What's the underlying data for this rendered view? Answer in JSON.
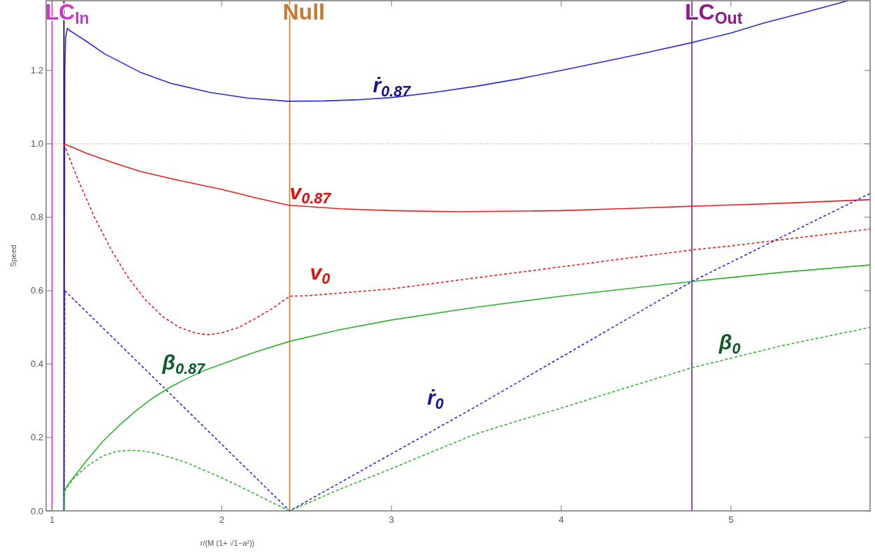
{
  "chart_data": {
    "type": "line",
    "xlabel": "r/(M (1+ √1−a²))",
    "ylabel": "Speed",
    "xlim": [
      0.965,
      5.82
    ],
    "ylim": [
      0,
      1.39
    ],
    "xticks": [
      1,
      2,
      3,
      4,
      5
    ],
    "yticks": [
      {
        "value": 0,
        "label": "0.0"
      },
      {
        "value": 0.2,
        "label": "0.2"
      },
      {
        "value": 0.4,
        "label": "0.4"
      },
      {
        "value": 0.6,
        "label": "0.6"
      },
      {
        "value": 0.8,
        "label": "0.8"
      },
      {
        "value": 1,
        "label": "1.0"
      },
      {
        "value": 1.2,
        "label": "1.2"
      }
    ],
    "grid": false,
    "series": [
      {
        "name": "ṙ$_{0.87}$",
        "color": "#2a2ae0",
        "line_style": "solid",
        "x": [
          1.07,
          1.075,
          1.08,
          1.09,
          1.1,
          1.15,
          1.2,
          1.31,
          1.52,
          1.7,
          1.93,
          2.15,
          2.39,
          2.6,
          2.8,
          3.0,
          3.25,
          3.5,
          3.75,
          4.0,
          4.25,
          4.5,
          4.77,
          5.0,
          5.2,
          5.45,
          5.69
        ],
        "values": [
          0,
          1.2,
          1.29,
          1.315,
          1.31,
          1.295,
          1.28,
          1.245,
          1.195,
          1.165,
          1.14,
          1.125,
          1.116,
          1.117,
          1.12,
          1.126,
          1.14,
          1.157,
          1.177,
          1.2,
          1.224,
          1.248,
          1.276,
          1.302,
          1.33,
          1.36,
          1.39
        ]
      },
      {
        "name": "v$_{0.87}$",
        "color": "#e8201f",
        "line_style": "solid",
        "x": [
          1.07,
          1.2,
          1.35,
          1.52,
          1.75,
          2.0,
          2.2,
          2.39,
          2.7,
          3.0,
          3.4,
          4.0,
          4.4,
          4.77,
          5.3,
          5.82
        ],
        "values": [
          1.0,
          0.975,
          0.95,
          0.925,
          0.9,
          0.876,
          0.853,
          0.833,
          0.823,
          0.818,
          0.815,
          0.818,
          0.824,
          0.83,
          0.838,
          0.848
        ]
      },
      {
        "name": "v$_{0}$",
        "color": "#e8201f",
        "line_style": "dashed",
        "x": [
          1.07,
          1.15,
          1.25,
          1.35,
          1.45,
          1.55,
          1.65,
          1.75,
          1.85,
          1.92,
          2.0,
          2.1,
          2.2,
          2.3,
          2.4,
          2.5,
          3.0,
          3.5,
          4.0,
          4.5,
          4.77,
          5.0,
          5.5,
          5.82
        ],
        "values": [
          1.0,
          0.905,
          0.8,
          0.71,
          0.635,
          0.575,
          0.53,
          0.5,
          0.484,
          0.48,
          0.485,
          0.5,
          0.525,
          0.552,
          0.585,
          0.586,
          0.605,
          0.635,
          0.665,
          0.695,
          0.711,
          0.722,
          0.75,
          0.768
        ]
      },
      {
        "name": "β$_{0.87}$",
        "color": "#2db52d",
        "line_style": "solid",
        "x": [
          1.07,
          1.072,
          1.1,
          1.15,
          1.2,
          1.3,
          1.4,
          1.5,
          1.6,
          1.7,
          1.8,
          1.9,
          2.0,
          2.2,
          2.4,
          2.7,
          3.0,
          3.5,
          4.0,
          4.4,
          4.77,
          5.3,
          5.82
        ],
        "values": [
          0,
          0.055,
          0.075,
          0.105,
          0.135,
          0.19,
          0.235,
          0.275,
          0.31,
          0.338,
          0.362,
          0.383,
          0.4,
          0.433,
          0.462,
          0.494,
          0.52,
          0.555,
          0.585,
          0.606,
          0.625,
          0.65,
          0.67
        ]
      },
      {
        "name": "ṙ$_{0}$",
        "color": "#2a2ae0",
        "line_style": "dashed",
        "x": [
          1.07,
          1.075,
          2.4,
          3.5,
          4.77,
          5.82
        ],
        "values": [
          0,
          0.6,
          0,
          0.285,
          0.625,
          0.865
        ]
      },
      {
        "name": "β$_{0}$",
        "color": "#2db52d",
        "line_style": "dashed",
        "x": [
          1.07,
          1.075,
          1.12,
          1.2,
          1.3,
          1.38,
          1.45,
          1.52,
          1.6,
          1.7,
          1.8,
          1.9,
          2.0,
          2.1,
          2.2,
          2.3,
          2.4,
          2.7,
          3.0,
          3.25,
          3.5,
          3.75,
          4.0,
          4.4,
          4.77,
          5.3,
          5.82
        ],
        "values": [
          0,
          0.055,
          0.085,
          0.12,
          0.15,
          0.162,
          0.165,
          0.164,
          0.158,
          0.145,
          0.13,
          0.11,
          0.09,
          0.068,
          0.045,
          0.022,
          0,
          0.06,
          0.115,
          0.163,
          0.21,
          0.246,
          0.28,
          0.338,
          0.39,
          0.45,
          0.5
        ]
      }
    ],
    "ref_lines": [
      {
        "axis": "x",
        "value": 1.0,
        "label": "LC$_{In}$",
        "color": "#cc33cc"
      },
      {
        "axis": "x",
        "value": 1.07,
        "color": "#000000"
      },
      {
        "axis": "x",
        "value": 2.4,
        "label": "Null",
        "color": "#c87a30"
      },
      {
        "axis": "x",
        "value": 4.77,
        "label": "LC$_{Out}$",
        "color": "#8b1a8b"
      },
      {
        "axis": "y",
        "value": 1.0,
        "color": "#e0b080",
        "line_style": "dotted"
      }
    ]
  }
}
